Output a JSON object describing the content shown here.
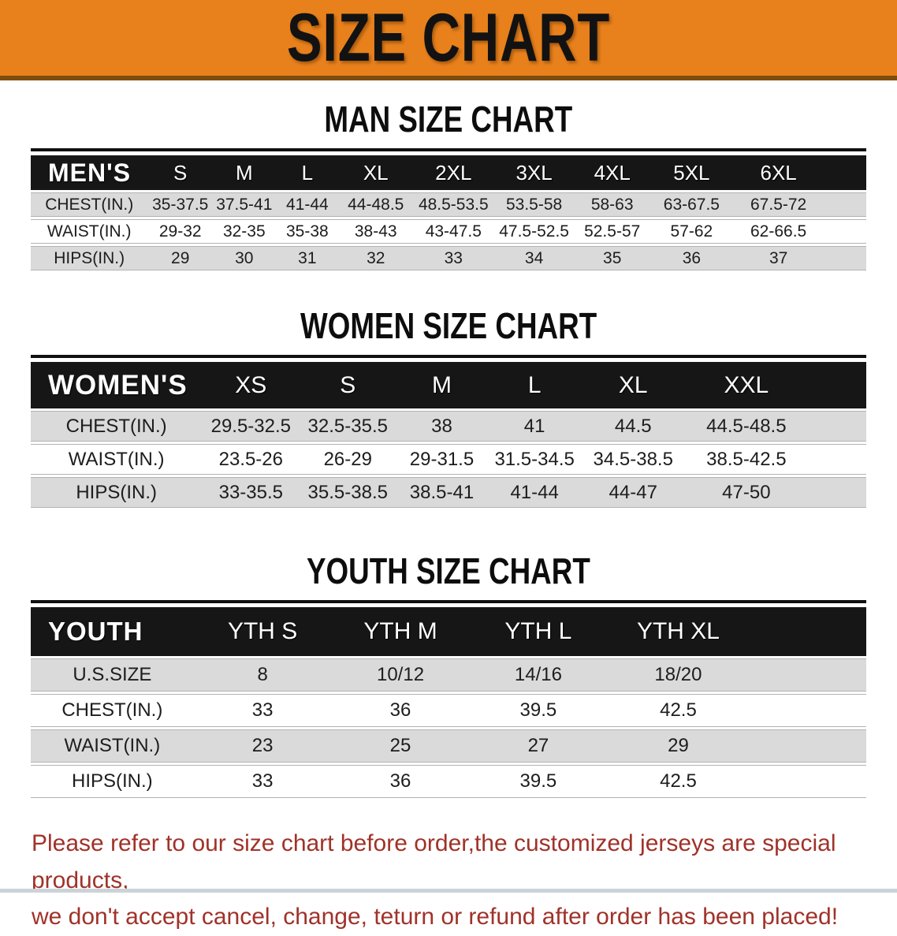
{
  "banner": {
    "title": "SIZE CHART"
  },
  "colors": {
    "banner_orange": "#E8811C",
    "header_black": "#161616",
    "row_gray": "#DADADA",
    "note_red": "#A03229"
  },
  "sections": [
    {
      "heading": "MAN SIZE CHART",
      "table": {
        "header_label": "MEN'S",
        "columns": [
          "S",
          "M",
          "L",
          "XL",
          "2XL",
          "3XL",
          "4XL",
          "5XL",
          "6XL"
        ],
        "rows": [
          {
            "label": "CHEST(IN.)",
            "values": [
              "35-37.5",
              "37.5-41",
              "41-44",
              "44-48.5",
              "48.5-53.5",
              "53.5-58",
              "58-63",
              "63-67.5",
              "67.5-72"
            ]
          },
          {
            "label": "WAIST(IN.)",
            "values": [
              "29-32",
              "32-35",
              "35-38",
              "38-43",
              "43-47.5",
              "47.5-52.5",
              "52.5-57",
              "57-62",
              "62-66.5"
            ]
          },
          {
            "label": "HIPS(IN.)",
            "values": [
              "29",
              "30",
              "31",
              "32",
              "33",
              "34",
              "35",
              "36",
              "37"
            ]
          }
        ]
      }
    },
    {
      "heading": "WOMEN SIZE CHART",
      "table": {
        "header_label": "WOMEN'S",
        "columns": [
          "XS",
          "S",
          "M",
          "L",
          "XL",
          "XXL"
        ],
        "rows": [
          {
            "label": "CHEST(IN.)",
            "values": [
              "29.5-32.5",
              "32.5-35.5",
              "38",
              "41",
              "44.5",
              "44.5-48.5"
            ]
          },
          {
            "label": "WAIST(IN.)",
            "values": [
              "23.5-26",
              "26-29",
              "29-31.5",
              "31.5-34.5",
              "34.5-38.5",
              "38.5-42.5"
            ]
          },
          {
            "label": "HIPS(IN.)",
            "values": [
              "33-35.5",
              "35.5-38.5",
              "38.5-41",
              "41-44",
              "44-47",
              "47-50"
            ]
          }
        ]
      }
    },
    {
      "heading": "YOUTH SIZE CHART",
      "table": {
        "header_label": "YOUTH",
        "columns": [
          "YTH S",
          "YTH M",
          "YTH L",
          "YTH XL"
        ],
        "rows": [
          {
            "label": "U.S.SIZE",
            "values": [
              "8",
              "10/12",
              "14/16",
              "18/20"
            ]
          },
          {
            "label": "CHEST(IN.)",
            "values": [
              "33",
              "36",
              "39.5",
              "42.5"
            ]
          },
          {
            "label": "WAIST(IN.)",
            "values": [
              "23",
              "25",
              "27",
              "29"
            ]
          },
          {
            "label": "HIPS(IN.)",
            "values": [
              "33",
              "36",
              "39.5",
              "42.5"
            ]
          }
        ]
      }
    }
  ],
  "footer": {
    "line1": "Please refer to our size chart before order,the customized jerseys are special products,",
    "line2": "we don't accept cancel, change, teturn or refund after order has been placed!"
  }
}
